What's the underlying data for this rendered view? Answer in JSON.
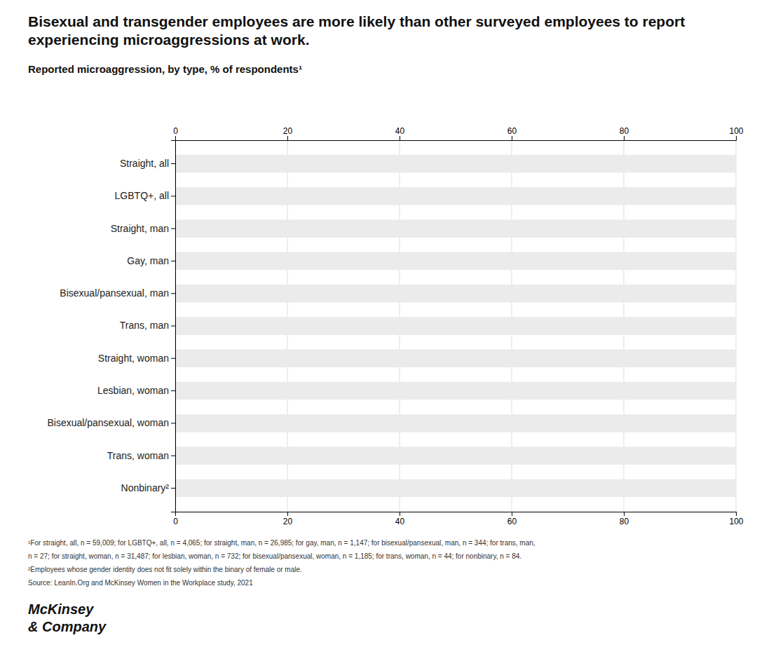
{
  "chart_data": {
    "type": "bar",
    "orientation": "horizontal",
    "title": "Bisexual and transgender employees are more likely than other surveyed employees to report experiencing microaggressions at work.",
    "subtitle": "Reported microaggression, by type, % of respondents¹",
    "categories": [
      "Straight, all",
      "LGBTQ+, all",
      "Straight, man",
      "Gay, man",
      "Bisexual/pansexual, man",
      "Trans, man",
      "Straight, woman",
      "Lesbian, woman",
      "Bisexual/pansexual, woman",
      "Trans, woman",
      "Nonbinary²"
    ],
    "values": [
      100,
      100,
      100,
      100,
      100,
      100,
      100,
      100,
      100,
      100,
      100
    ],
    "color": "#EBEBEB",
    "xlim": [
      0,
      100
    ],
    "xticks": [
      0,
      20,
      40,
      60,
      80,
      100
    ],
    "grid": true,
    "annotations": [
      "¹For straight, all, n = 59,009; for LGBTQ+, all, n = 4,065; for straight, man, n = 26,985; for gay, man, n = 1,147; for bisexual/pansexual, man, n = 344; for trans, man,",
      "n = 27; for straight, woman, n = 31,487; for lesbian, woman, n = 732; for bisexual/pansexual, woman, n = 1,185; for trans, woman, n = 44; for nonbinary, n = 84.",
      "²Employees whose gender identity does not fit solely within the binary of female or male.",
      "Source: LeanIn.Org and McKinsey Women in the Workplace study, 2021",
      "McKinsey",
      "& Company"
    ]
  }
}
